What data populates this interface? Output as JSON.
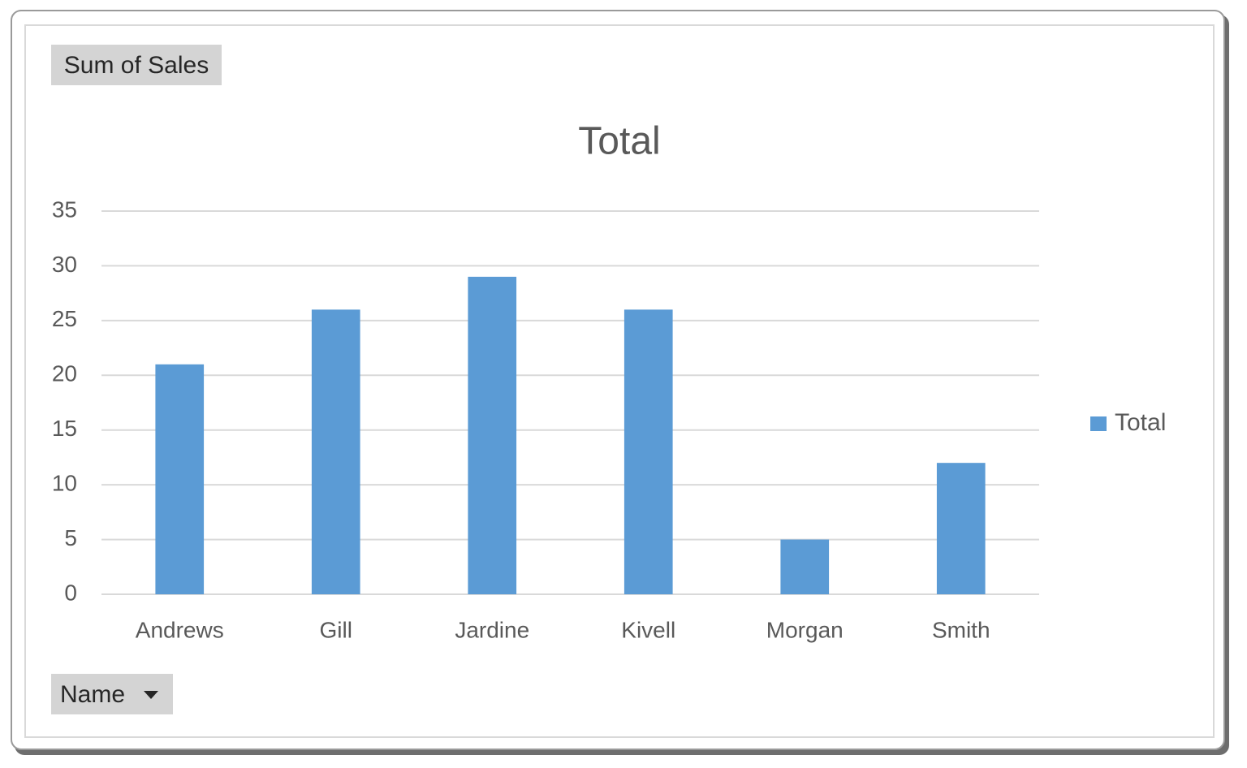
{
  "chart_data": {
    "type": "bar",
    "title": "Total",
    "value_field": "Sum of Sales",
    "axis_field": "Name",
    "categories": [
      "Andrews",
      "Gill",
      "Jardine",
      "Kivell",
      "Morgan",
      "Smith"
    ],
    "series": [
      {
        "name": "Total",
        "color": "#5b9bd5",
        "values": [
          21,
          26,
          29,
          26,
          5,
          12
        ]
      }
    ],
    "ylim": [
      0,
      35
    ],
    "yticks": [
      0,
      5,
      10,
      15,
      20,
      25,
      30,
      35
    ],
    "grid": true,
    "legend": "right"
  }
}
